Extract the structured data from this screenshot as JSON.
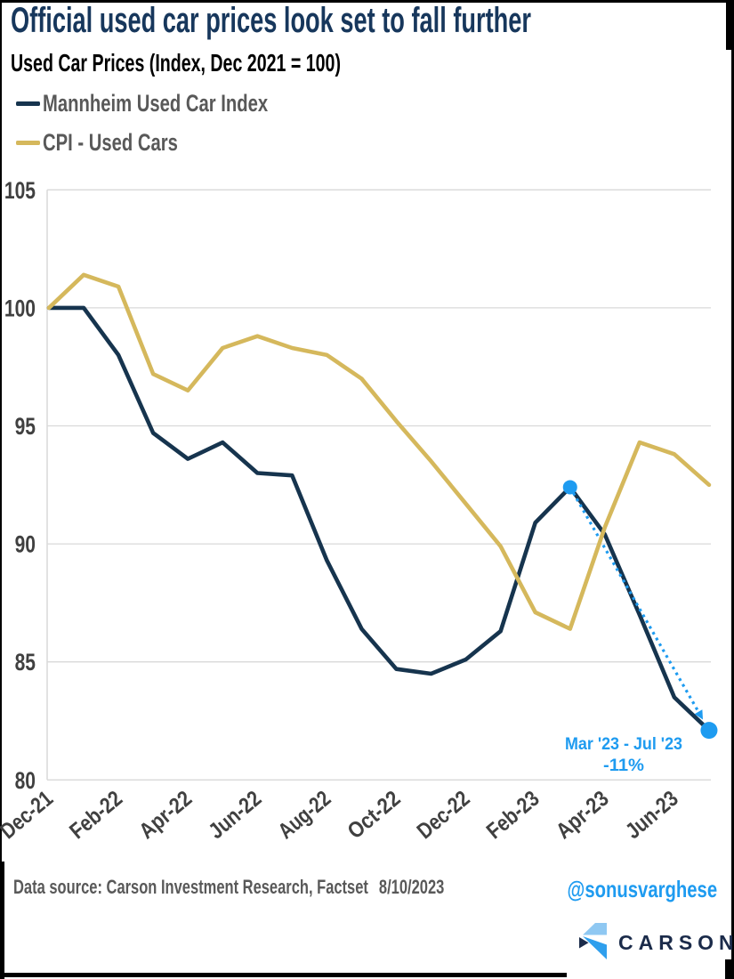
{
  "header": {
    "title": "Official used car prices look set to fall further",
    "subtitle": "Used Car Prices (Index, Dec 2021 = 100)"
  },
  "legend": {
    "items": [
      {
        "label": "Mannheim Used Car Index",
        "color": "#16344E"
      },
      {
        "label": "CPI - Used Cars",
        "color": "#D5B85C"
      }
    ]
  },
  "chart_data": {
    "type": "line",
    "title": "Used Car Prices (Index, Dec 2021 = 100)",
    "categories": [
      "Dec-21",
      "Jan-22",
      "Feb-22",
      "Mar-22",
      "Apr-22",
      "May-22",
      "Jun-22",
      "Jul-22",
      "Aug-22",
      "Sep-22",
      "Oct-22",
      "Nov-22",
      "Dec-22",
      "Jan-23",
      "Feb-23",
      "Mar-23",
      "Apr-23",
      "May-23",
      "Jun-23",
      "Jul-23"
    ],
    "series": [
      {
        "name": "Mannheim Used Car Index",
        "color": "#16344E",
        "values": [
          100.0,
          100.0,
          98.0,
          94.7,
          93.6,
          94.3,
          93.0,
          92.9,
          89.3,
          86.4,
          84.7,
          84.5,
          85.1,
          86.3,
          90.9,
          92.4,
          90.4,
          87.0,
          83.5,
          82.1
        ]
      },
      {
        "name": "CPI - Used Cars",
        "color": "#D5B85C",
        "values": [
          100.0,
          101.4,
          100.9,
          97.2,
          96.5,
          98.3,
          98.8,
          98.3,
          98.0,
          97.0,
          95.2,
          93.5,
          91.7,
          89.9,
          87.1,
          86.4,
          90.7,
          94.3,
          93.8,
          92.5
        ]
      }
    ],
    "ylim": [
      80,
      105
    ],
    "yticks": [
      105,
      100,
      95,
      90,
      85,
      80
    ],
    "xtick_labels": [
      "Dec-21",
      "Feb-22",
      "Apr-22",
      "Jun-22",
      "Aug-22",
      "Oct-22",
      "Dec-22",
      "Feb-23",
      "Apr-23",
      "Jun-23"
    ],
    "grid": "horizontal-only",
    "legend_position": "top-left",
    "annotation": {
      "line1": "Mar '23 - Jul '23",
      "line2": "-11%",
      "from_category": "Mar-23",
      "from_index": 15,
      "to_category": "Jul-23",
      "to_index": 19,
      "color": "#1E9BF0"
    }
  },
  "footer": {
    "source": "Data source: Carson Investment Research, Factset",
    "date": "8/10/2023",
    "handle": "@sonusvarghese",
    "logo_text": "CARSON"
  },
  "colors": {
    "grid": "#D9D9D9",
    "axis_text": "#404040",
    "accent_blue": "#1E9BF0",
    "title_navy": "#17375C",
    "logo_navy": "#1B2B4A",
    "logo_light_blue": "#8FC8F2",
    "logo_mid_blue": "#2F9FED"
  }
}
